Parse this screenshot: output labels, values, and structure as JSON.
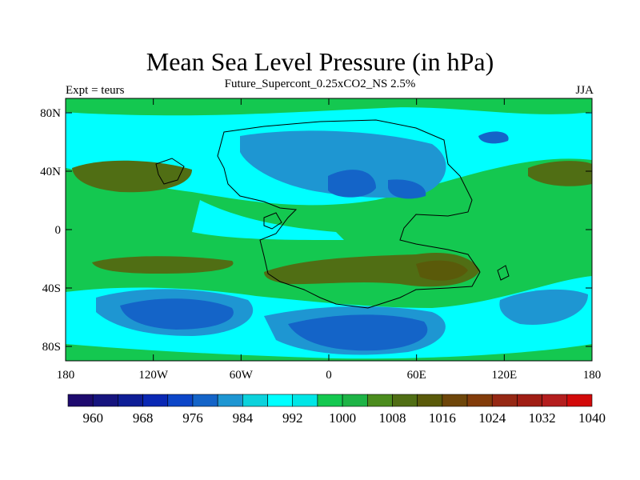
{
  "title": "Mean Sea Level Pressure (in hPa)",
  "subtitle": "Future_Supercont_0.25xCO2_NS 2.5%",
  "left_string": "Expt = teurs",
  "right_string": "JJA",
  "x_axis": {
    "ticks": [
      "180",
      "120W",
      "60W",
      "0",
      "60E",
      "120E",
      "180"
    ]
  },
  "y_axis": {
    "ticks": [
      "80N",
      "40N",
      "0",
      "40S",
      "80S"
    ]
  },
  "colorbar": {
    "labels": [
      "960",
      "968",
      "976",
      "984",
      "992",
      "1000",
      "1008",
      "1016",
      "1024",
      "1032",
      "1040"
    ],
    "colors": [
      "#1e0a6e",
      "#16147e",
      "#0e1e96",
      "#0a28b4",
      "#0c46c8",
      "#1464c8",
      "#1e96d2",
      "#0cd2dc",
      "#00ffff",
      "#00e6e6",
      "#14c850",
      "#1eb446",
      "#4b8c1e",
      "#506e14",
      "#5a5a0a",
      "#6e460a",
      "#823c0a",
      "#962814",
      "#a01e14",
      "#b41e1e",
      "#d20a0a"
    ]
  },
  "colors": {
    "ocean_base": "#00ffff",
    "land_mid": "#14c850",
    "high_pressure": "#506e14",
    "low_pressure": "#0a28b4"
  }
}
